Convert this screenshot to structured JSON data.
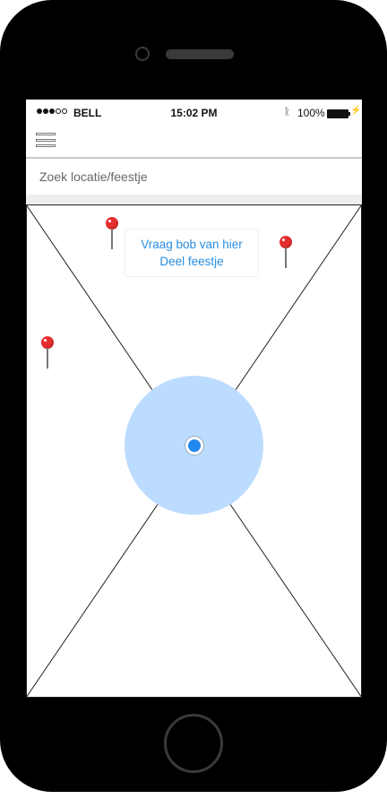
{
  "status_bar": {
    "signal_dots": [
      "filled",
      "filled",
      "filled",
      "empty",
      "empty"
    ],
    "carrier": "BELL",
    "time": "15:02 PM",
    "bluetooth_icon": "bluetooth-icon",
    "battery_percent": "100%",
    "battery_icon": "battery-full-icon",
    "charging_icon": "bolt-icon"
  },
  "nav": {
    "menu_icon": "hamburger-menu-icon"
  },
  "search": {
    "placeholder": "Zoek locatie/feestje"
  },
  "map": {
    "popup": {
      "ask_bob": "Vraag bob van hier",
      "share_party": "Deel feestje"
    },
    "pins": [
      "pin-1",
      "pin-2",
      "pin-3"
    ],
    "colors": {
      "pin": "#e62e2e",
      "accuracy": "#bcdcff",
      "location": "#2288ee",
      "link": "#2a8ee0"
    }
  }
}
